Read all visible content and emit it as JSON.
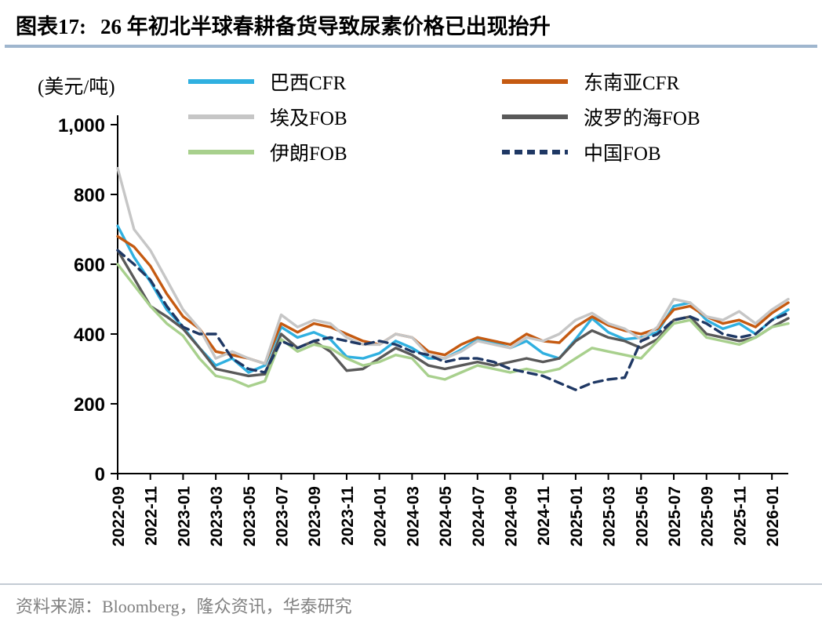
{
  "header": {
    "figure_label": "图表17:",
    "title": "26 年初北半球春耕备货导致尿素价格已出现抬升"
  },
  "footer": {
    "source": "资料来源：Bloomberg，隆众资讯，华泰研究"
  },
  "colors": {
    "title_underline": "#9FB6CE",
    "footer_divider": "#C4CBD4",
    "axis": "#000000",
    "source_text": "#808080"
  },
  "chart_data": {
    "type": "line",
    "title": "26 年初北半球春耕备货导致尿素价格已出现抬升",
    "unit_label": "(美元/吨)",
    "ylabel": "美元/吨",
    "xlabel": "",
    "ylim": [
      0,
      1000
    ],
    "y_ticks": [
      0,
      200,
      400,
      600,
      800,
      1000
    ],
    "grid": false,
    "legend_position": "top",
    "x": [
      "2022-09",
      "2022-10",
      "2022-11",
      "2022-12",
      "2023-01",
      "2023-02",
      "2023-03",
      "2023-04",
      "2023-05",
      "2023-06",
      "2023-07",
      "2023-08",
      "2023-09",
      "2023-10",
      "2023-11",
      "2023-12",
      "2024-01",
      "2024-02",
      "2024-03",
      "2024-04",
      "2024-05",
      "2024-06",
      "2024-07",
      "2024-08",
      "2024-09",
      "2024-10",
      "2024-11",
      "2024-12",
      "2025-01",
      "2025-02",
      "2025-03",
      "2025-04",
      "2025-05",
      "2025-06",
      "2025-07",
      "2025-08",
      "2025-09",
      "2025-10",
      "2025-11",
      "2025-12",
      "2026-01",
      "2026-02"
    ],
    "x_tick_labels": [
      "2022-09",
      "2022-11",
      "2023-01",
      "2023-03",
      "2023-05",
      "2023-07",
      "2023-09",
      "2023-11",
      "2024-01",
      "2024-03",
      "2024-05",
      "2024-07",
      "2024-09",
      "2024-11",
      "2025-01",
      "2025-03",
      "2025-05",
      "2025-07",
      "2025-09",
      "2025-11",
      "2026-01"
    ],
    "series": [
      {
        "name": "巴西CFR",
        "color": "#30B0E0",
        "dash": false,
        "values": [
          710,
          620,
          550,
          470,
          420,
          360,
          310,
          330,
          290,
          310,
          420,
          390,
          405,
          385,
          335,
          330,
          345,
          380,
          360,
          330,
          330,
          355,
          385,
          375,
          360,
          380,
          345,
          330,
          385,
          445,
          405,
          385,
          390,
          405,
          480,
          490,
          440,
          415,
          430,
          400,
          440,
          470
        ]
      },
      {
        "name": "东南亚CFR",
        "color": "#C55A11",
        "dash": false,
        "values": [
          680,
          650,
          595,
          515,
          450,
          415,
          350,
          340,
          330,
          315,
          430,
          405,
          430,
          420,
          400,
          380,
          370,
          400,
          390,
          350,
          340,
          370,
          390,
          380,
          370,
          400,
          380,
          375,
          420,
          450,
          425,
          410,
          400,
          415,
          470,
          480,
          450,
          430,
          440,
          420,
          460,
          490
        ]
      },
      {
        "name": "埃及FOB",
        "color": "#C6C6C6",
        "dash": false,
        "values": [
          875,
          700,
          640,
          555,
          470,
          415,
          330,
          350,
          330,
          315,
          455,
          420,
          440,
          430,
          390,
          370,
          370,
          400,
          390,
          340,
          330,
          350,
          380,
          370,
          360,
          390,
          380,
          400,
          440,
          460,
          430,
          415,
          385,
          420,
          500,
          490,
          450,
          440,
          465,
          430,
          470,
          500
        ]
      },
      {
        "name": "波罗的海FOB",
        "color": "#595959",
        "dash": false,
        "values": [
          640,
          560,
          480,
          450,
          415,
          360,
          300,
          290,
          280,
          285,
          400,
          360,
          380,
          350,
          295,
          300,
          330,
          360,
          340,
          310,
          300,
          310,
          320,
          310,
          320,
          330,
          320,
          330,
          380,
          410,
          390,
          380,
          360,
          385,
          440,
          450,
          400,
          390,
          380,
          390,
          420,
          445
        ]
      },
      {
        "name": "伊朗FOB",
        "color": "#A8D08D",
        "dash": false,
        "values": [
          600,
          540,
          480,
          430,
          395,
          330,
          280,
          270,
          250,
          265,
          385,
          350,
          370,
          360,
          330,
          310,
          320,
          340,
          330,
          280,
          270,
          290,
          310,
          300,
          290,
          300,
          290,
          300,
          330,
          360,
          350,
          340,
          330,
          380,
          430,
          440,
          390,
          380,
          370,
          390,
          420,
          430
        ]
      },
      {
        "name": "中国FOB",
        "color": "#1F3864",
        "dash": true,
        "values": [
          640,
          600,
          555,
          480,
          420,
          400,
          400,
          330,
          300,
          290,
          380,
          360,
          380,
          390,
          380,
          370,
          380,
          370,
          350,
          340,
          320,
          330,
          330,
          320,
          300,
          290,
          280,
          260,
          240,
          260,
          270,
          275,
          380,
          400,
          440,
          450,
          430,
          400,
          390,
          400,
          440,
          460
        ]
      }
    ]
  }
}
